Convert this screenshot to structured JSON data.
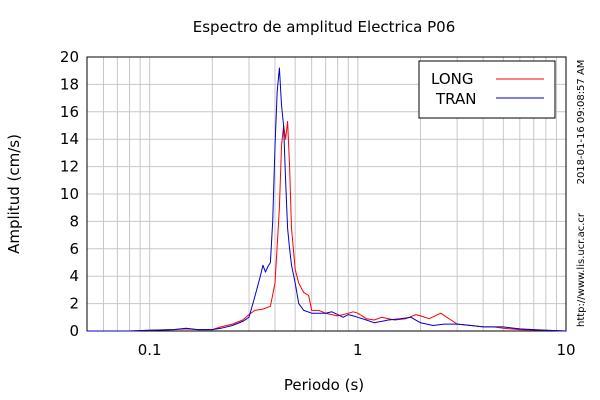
{
  "chart_data": {
    "type": "line",
    "title": "Espectro de amplitud Electrica P06",
    "xlabel": "Periodo (s)",
    "ylabel": "Amplitud (cm/s)",
    "xscale": "log",
    "xlim": [
      0.05,
      10
    ],
    "ylim": [
      0,
      20
    ],
    "grid": true,
    "legend_position": "top-right",
    "x_ticks": [
      0.1,
      1,
      10
    ],
    "x_tick_labels": [
      "0.1",
      "1",
      "10"
    ],
    "y_ticks": [
      0,
      2,
      4,
      6,
      8,
      10,
      12,
      14,
      16,
      18,
      20
    ],
    "series": [
      {
        "name": "LONG",
        "color": "#ff0000",
        "x": [
          0.05,
          0.08,
          0.1,
          0.13,
          0.15,
          0.17,
          0.2,
          0.22,
          0.25,
          0.28,
          0.3,
          0.32,
          0.35,
          0.38,
          0.4,
          0.42,
          0.43,
          0.44,
          0.45,
          0.46,
          0.47,
          0.48,
          0.5,
          0.52,
          0.55,
          0.58,
          0.6,
          0.65,
          0.7,
          0.75,
          0.8,
          0.85,
          0.9,
          0.95,
          1.0,
          1.1,
          1.2,
          1.3,
          1.5,
          1.7,
          1.9,
          2.0,
          2.2,
          2.5,
          2.8,
          3.0,
          3.5,
          4.0,
          4.5,
          5.0,
          6.0,
          8.0,
          10.0
        ],
        "y": [
          0.0,
          0.0,
          0.05,
          0.1,
          0.15,
          0.1,
          0.1,
          0.3,
          0.5,
          0.8,
          1.2,
          1.5,
          1.6,
          1.8,
          3.5,
          9.0,
          13.5,
          15.0,
          14.0,
          15.3,
          12.0,
          7.5,
          4.5,
          3.5,
          2.8,
          2.6,
          1.5,
          1.5,
          1.3,
          1.2,
          1.1,
          1.2,
          1.3,
          1.4,
          1.3,
          0.9,
          0.8,
          1.0,
          0.8,
          0.9,
          1.2,
          1.1,
          0.9,
          1.3,
          0.8,
          0.5,
          0.4,
          0.3,
          0.3,
          0.2,
          0.1,
          0.05,
          0.0
        ]
      },
      {
        "name": "TRAN",
        "color": "#0000cc",
        "x": [
          0.05,
          0.08,
          0.1,
          0.13,
          0.15,
          0.17,
          0.2,
          0.22,
          0.25,
          0.28,
          0.3,
          0.32,
          0.34,
          0.35,
          0.36,
          0.37,
          0.38,
          0.39,
          0.4,
          0.41,
          0.42,
          0.43,
          0.44,
          0.45,
          0.46,
          0.47,
          0.48,
          0.5,
          0.52,
          0.55,
          0.6,
          0.65,
          0.7,
          0.75,
          0.8,
          0.85,
          0.9,
          0.95,
          1.0,
          1.1,
          1.2,
          1.4,
          1.6,
          1.8,
          2.0,
          2.3,
          2.6,
          3.0,
          3.5,
          4.0,
          5.0,
          6.0,
          8.0,
          10.0
        ],
        "y": [
          0.0,
          0.0,
          0.05,
          0.1,
          0.2,
          0.1,
          0.1,
          0.2,
          0.4,
          0.7,
          1.0,
          2.5,
          4.0,
          4.8,
          4.3,
          4.7,
          5.0,
          8.0,
          13.5,
          17.5,
          19.2,
          16.5,
          15.0,
          11.0,
          7.5,
          6.0,
          4.8,
          3.5,
          2.0,
          1.5,
          1.3,
          1.3,
          1.3,
          1.4,
          1.2,
          1.0,
          1.2,
          1.1,
          1.0,
          0.8,
          0.6,
          0.8,
          0.9,
          1.0,
          0.6,
          0.4,
          0.5,
          0.5,
          0.4,
          0.3,
          0.3,
          0.15,
          0.05,
          0.0
        ]
      }
    ],
    "annotations": {
      "timestamp": "2018-01-16 09:08:57 AM",
      "url": "http://www.lis.ucr.ac.cr"
    }
  }
}
